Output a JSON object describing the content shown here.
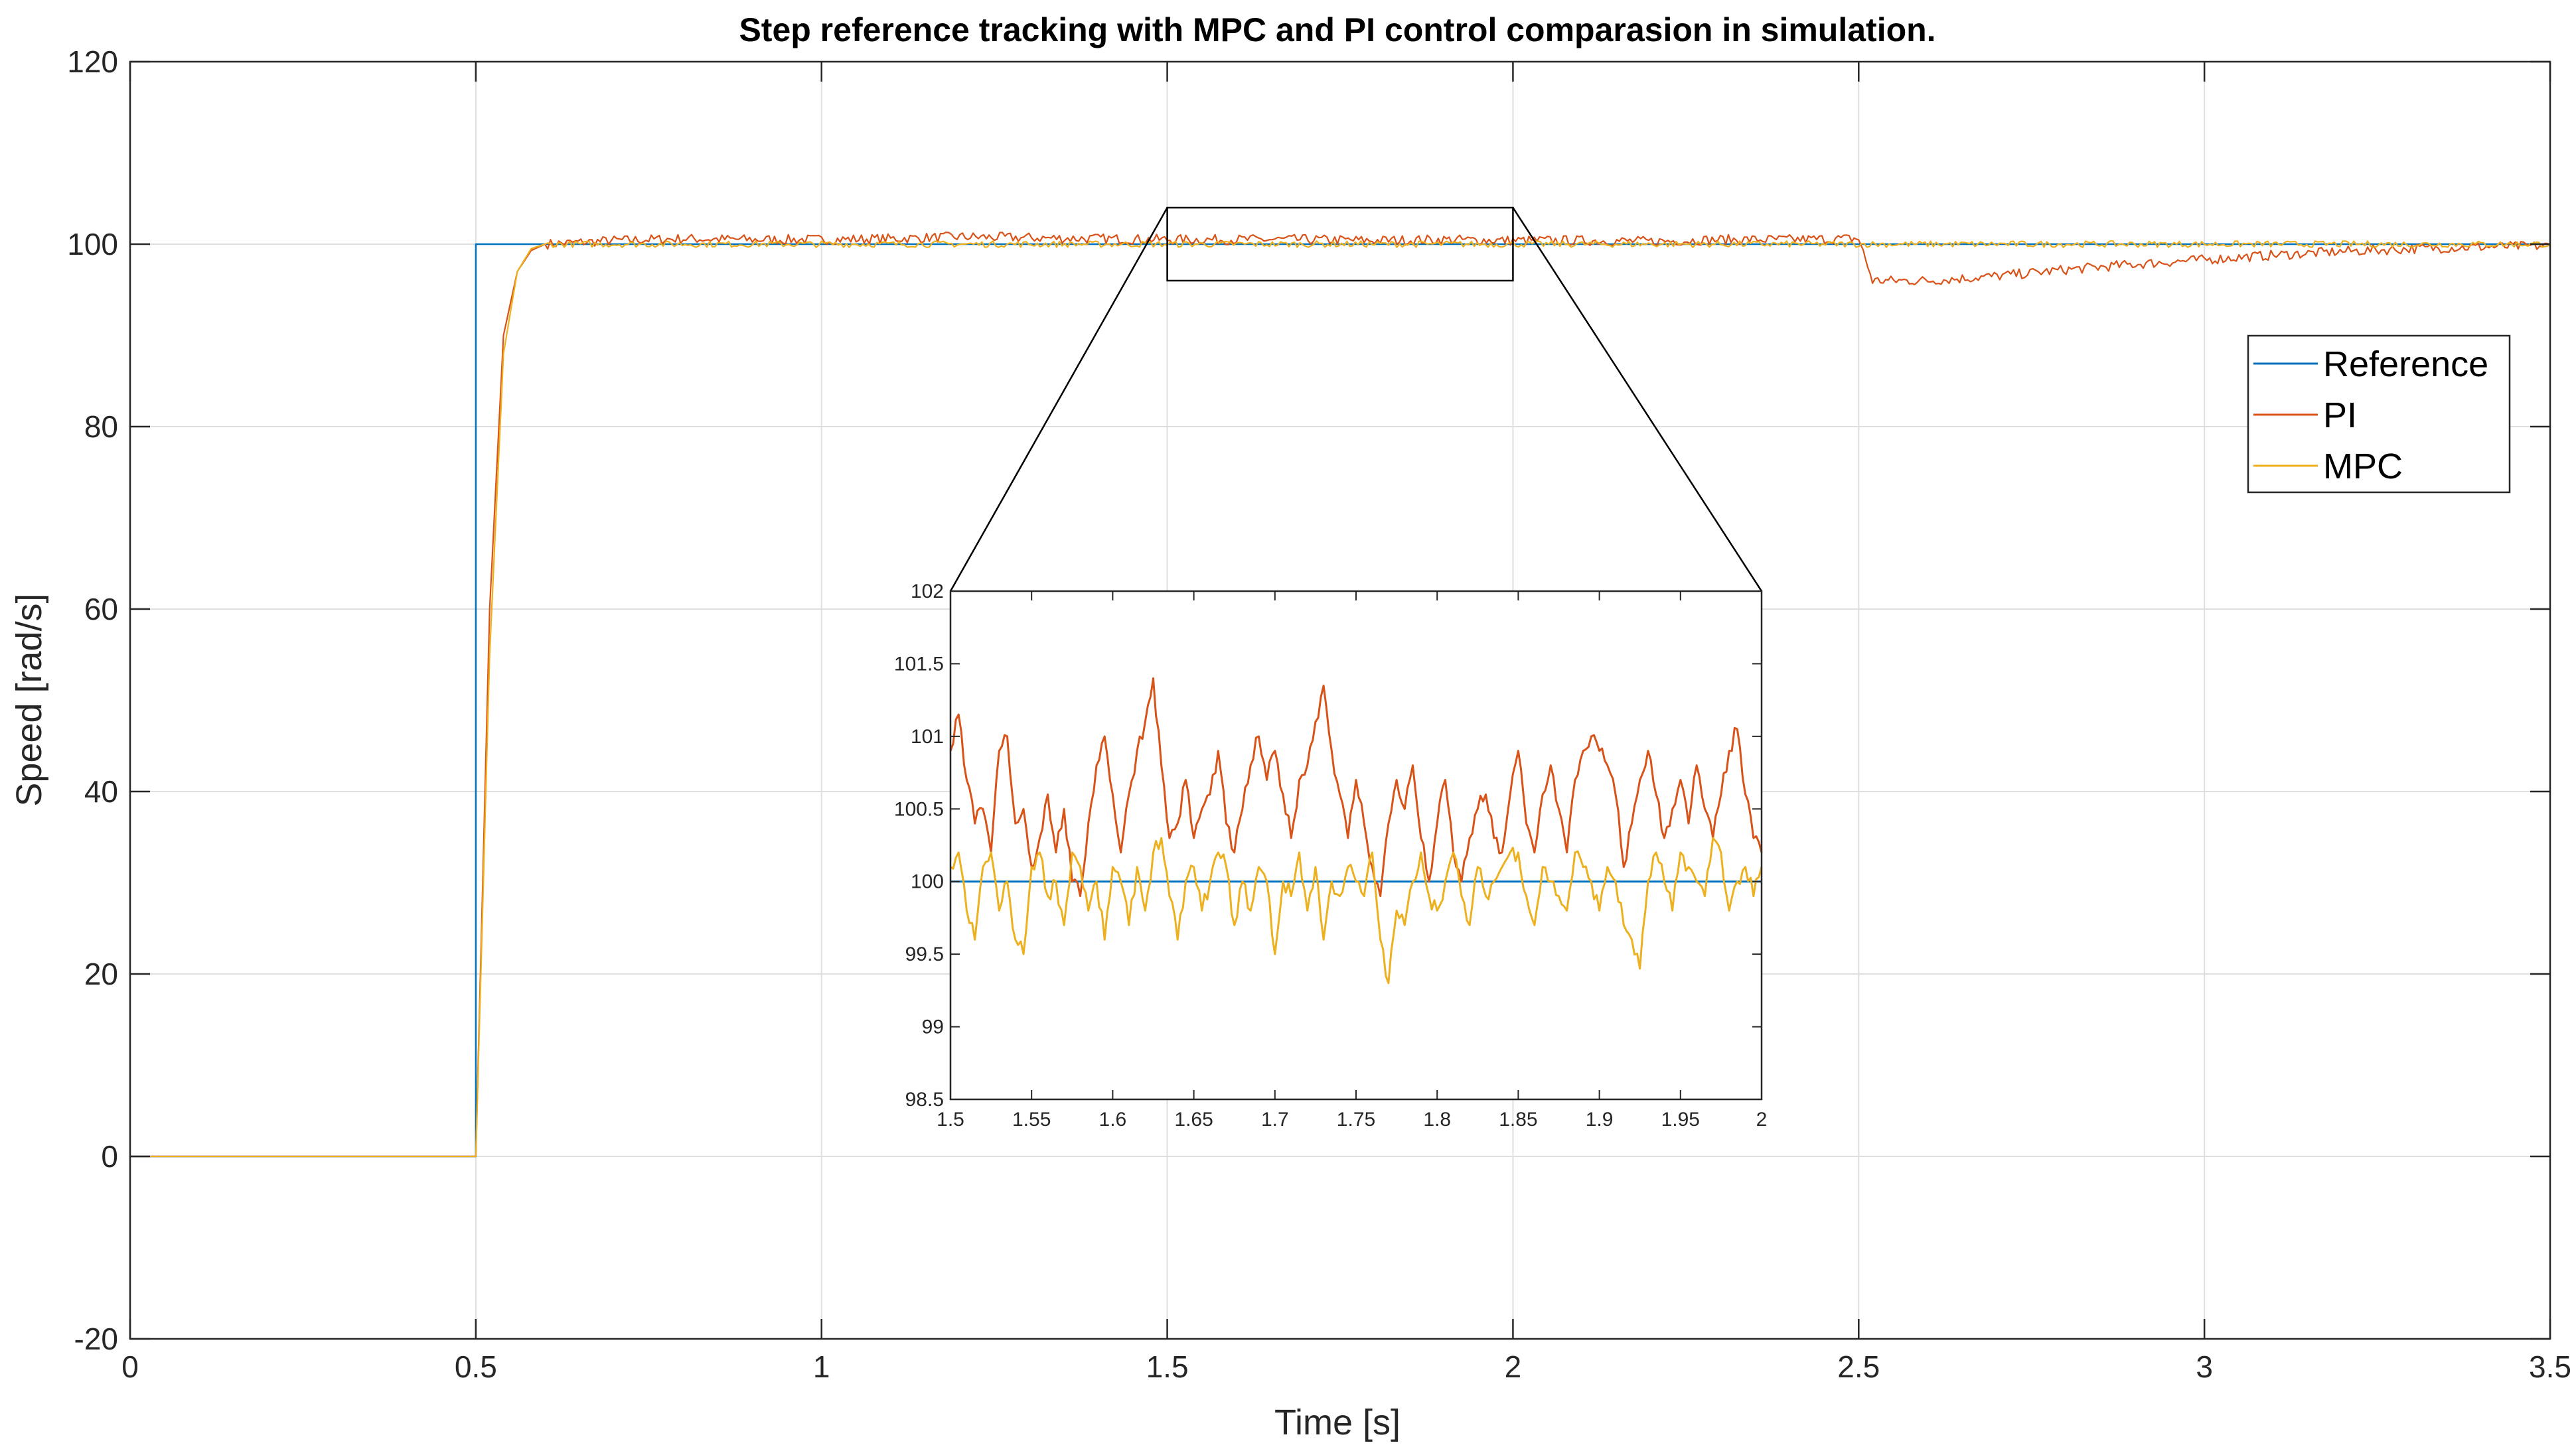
{
  "chart_data": {
    "type": "line",
    "title": "Step reference tracking with MPC and PI control comparasion in simulation.",
    "xlabel": "Time [s]",
    "ylabel": "Speed [rad/s]",
    "xlim": [
      0,
      3.5
    ],
    "ylim": [
      -20,
      120
    ],
    "grid": true,
    "x_ticks": [
      0,
      0.5,
      1,
      1.5,
      2,
      2.5,
      3,
      3.5
    ],
    "x_tick_labels": [
      "0",
      "0.5",
      "1",
      "1.5",
      "2",
      "2.5",
      "3",
      "3.5"
    ],
    "y_ticks": [
      -20,
      0,
      20,
      40,
      60,
      80,
      100,
      120
    ],
    "y_tick_labels": [
      "-20",
      "0",
      "20",
      "40",
      "60",
      "80",
      "100",
      "120"
    ],
    "legend": {
      "position": "right",
      "entries": [
        "Reference",
        "PI",
        "MPC"
      ]
    },
    "series": [
      {
        "name": "Reference",
        "color": "#0072BD",
        "x": [
          0,
          0.5,
          0.5,
          3.5
        ],
        "y": [
          0,
          0,
          100,
          100
        ]
      },
      {
        "name": "PI",
        "color": "#D95319",
        "x": [
          0,
          0.5,
          0.52,
          0.54,
          0.56,
          0.58,
          0.6,
          0.7,
          0.8,
          0.9,
          1.0,
          1.1,
          1.2,
          1.3,
          1.4,
          1.5,
          1.6,
          1.7,
          1.8,
          1.9,
          2.0,
          2.1,
          2.2,
          2.3,
          2.4,
          2.49,
          2.5,
          2.52,
          2.6,
          2.7,
          2.8,
          2.9,
          3.0,
          3.1,
          3.2,
          3.3,
          3.4,
          3.5
        ],
        "y": [
          0,
          0,
          60,
          90,
          97,
          99.3,
          100,
          100.4,
          100.6,
          100.5,
          100.5,
          100.6,
          100.8,
          100.7,
          100.6,
          100.5,
          100.5,
          100.5,
          100.4,
          100.5,
          100.4,
          100.4,
          100.3,
          100.5,
          100.5,
          100.6,
          100.6,
          96,
          96,
          96.5,
          97.2,
          97.8,
          98.3,
          98.8,
          99.2,
          99.5,
          99.7,
          99.8
        ]
      },
      {
        "name": "MPC",
        "color": "#EDB120",
        "x": [
          0,
          0.5,
          0.52,
          0.54,
          0.56,
          0.58,
          0.6,
          0.7,
          1.0,
          1.5,
          2.0,
          2.5,
          3.0,
          3.5
        ],
        "y": [
          0,
          0,
          55,
          88,
          97,
          99.5,
          100,
          100,
          100,
          100,
          100,
          100,
          100,
          100
        ]
      }
    ],
    "inset": {
      "xlim": [
        1.5,
        2
      ],
      "ylim": [
        98.5,
        102
      ],
      "x_tick_labels": [
        "1.5",
        "1.55",
        "1.6",
        "1.65",
        "1.7",
        "1.75",
        "1.8",
        "1.85",
        "1.9",
        "1.95",
        "2"
      ],
      "y_tick_labels": [
        "98.5",
        "99",
        "99.5",
        "100",
        "100.5",
        "101",
        "101.5",
        "102"
      ],
      "zoom_box": {
        "xlim": [
          1.5,
          2
        ],
        "ylim": [
          96,
          104
        ]
      },
      "series": [
        {
          "name": "Reference",
          "x": [
            1.5,
            2
          ],
          "y": [
            100,
            100
          ]
        },
        {
          "name": "PI",
          "x": [
            1.5,
            1.505,
            1.51,
            1.515,
            1.52,
            1.525,
            1.53,
            1.535,
            1.54,
            1.545,
            1.55,
            1.555,
            1.56,
            1.565,
            1.57,
            1.575,
            1.58,
            1.585,
            1.59,
            1.595,
            1.6,
            1.605,
            1.61,
            1.615,
            1.62,
            1.625,
            1.63,
            1.635,
            1.64,
            1.645,
            1.65,
            1.655,
            1.66,
            1.665,
            1.67,
            1.675,
            1.68,
            1.685,
            1.69,
            1.695,
            1.7,
            1.705,
            1.71,
            1.715,
            1.72,
            1.725,
            1.73,
            1.735,
            1.74,
            1.745,
            1.75,
            1.755,
            1.76,
            1.765,
            1.77,
            1.775,
            1.78,
            1.785,
            1.79,
            1.795,
            1.8,
            1.805,
            1.81,
            1.815,
            1.82,
            1.825,
            1.83,
            1.835,
            1.84,
            1.845,
            1.85,
            1.855,
            1.86,
            1.865,
            1.87,
            1.875,
            1.88,
            1.885,
            1.89,
            1.895,
            1.9,
            1.905,
            1.91,
            1.915,
            1.92,
            1.925,
            1.93,
            1.935,
            1.94,
            1.945,
            1.95,
            1.955,
            1.96,
            1.965,
            1.97,
            1.975,
            1.98,
            1.985,
            1.99,
            1.995,
            2.0
          ],
          "y": [
            100.9,
            101.15,
            100.7,
            100.4,
            100.5,
            100.2,
            100.9,
            101.0,
            100.4,
            100.5,
            100.1,
            100.3,
            100.6,
            100.2,
            100.5,
            100.0,
            99.9,
            100.4,
            100.8,
            101.0,
            100.6,
            100.2,
            100.6,
            100.9,
            101.1,
            101.4,
            100.8,
            100.3,
            100.4,
            100.7,
            100.3,
            100.5,
            100.6,
            100.9,
            100.4,
            100.2,
            100.5,
            100.8,
            101.0,
            100.7,
            100.9,
            100.6,
            100.3,
            100.7,
            100.8,
            101.1,
            101.35,
            100.9,
            100.6,
            100.3,
            100.7,
            100.4,
            100.1,
            99.9,
            100.4,
            100.7,
            100.5,
            100.8,
            100.3,
            100.0,
            100.4,
            100.7,
            100.2,
            100.0,
            100.3,
            100.5,
            100.6,
            100.3,
            100.2,
            100.6,
            100.9,
            100.4,
            100.2,
            100.6,
            100.8,
            100.5,
            100.2,
            100.7,
            100.9,
            101.0,
            100.9,
            100.8,
            100.6,
            100.1,
            100.4,
            100.7,
            100.9,
            100.6,
            100.3,
            100.5,
            100.7,
            100.4,
            100.8,
            100.5,
            100.3,
            100.6,
            100.9,
            101.05,
            100.6,
            100.3,
            100.2
          ]
        },
        {
          "name": "MPC",
          "x": [
            1.5,
            1.505,
            1.51,
            1.515,
            1.52,
            1.525,
            1.53,
            1.535,
            1.54,
            1.545,
            1.55,
            1.555,
            1.56,
            1.565,
            1.57,
            1.575,
            1.58,
            1.585,
            1.59,
            1.595,
            1.6,
            1.605,
            1.61,
            1.615,
            1.62,
            1.625,
            1.63,
            1.635,
            1.64,
            1.645,
            1.65,
            1.655,
            1.66,
            1.665,
            1.67,
            1.675,
            1.68,
            1.685,
            1.69,
            1.695,
            1.7,
            1.705,
            1.71,
            1.715,
            1.72,
            1.725,
            1.73,
            1.735,
            1.74,
            1.745,
            1.75,
            1.755,
            1.76,
            1.765,
            1.77,
            1.775,
            1.78,
            1.785,
            1.79,
            1.795,
            1.8,
            1.805,
            1.81,
            1.815,
            1.82,
            1.825,
            1.83,
            1.835,
            1.84,
            1.845,
            1.85,
            1.855,
            1.86,
            1.865,
            1.87,
            1.875,
            1.88,
            1.885,
            1.89,
            1.895,
            1.9,
            1.905,
            1.91,
            1.915,
            1.92,
            1.925,
            1.93,
            1.935,
            1.94,
            1.945,
            1.95,
            1.955,
            1.96,
            1.965,
            1.97,
            1.975,
            1.98,
            1.985,
            1.99,
            1.995,
            2.0
          ],
          "y": [
            100.1,
            100.2,
            99.8,
            99.6,
            100.1,
            100.2,
            99.8,
            100.0,
            99.6,
            99.5,
            100.1,
            100.2,
            99.9,
            100.0,
            99.7,
            100.2,
            100.1,
            99.8,
            100.0,
            99.6,
            100.1,
            100.0,
            99.7,
            100.1,
            99.8,
            100.2,
            100.3,
            99.9,
            99.6,
            100.0,
            100.1,
            99.8,
            100.0,
            100.2,
            100.1,
            99.7,
            100.0,
            99.8,
            100.1,
            100.0,
            99.5,
            100.0,
            99.9,
            100.2,
            99.8,
            100.1,
            99.6,
            100.0,
            99.9,
            100.1,
            100.0,
            99.9,
            100.2,
            99.6,
            99.3,
            99.8,
            99.7,
            100.0,
            100.2,
            99.9,
            99.8,
            100.0,
            100.2,
            99.9,
            99.7,
            100.1,
            99.9,
            100.0,
            100.1,
            100.2,
            100.2,
            99.9,
            99.7,
            100.1,
            100.0,
            99.9,
            99.8,
            100.2,
            100.1,
            100.0,
            99.8,
            100.1,
            100.0,
            99.7,
            99.6,
            99.4,
            100.0,
            100.2,
            100.0,
            99.8,
            100.2,
            100.1,
            100.0,
            99.9,
            100.3,
            100.2,
            99.8,
            100.0,
            100.1,
            99.9,
            100.1
          ]
        }
      ]
    }
  }
}
